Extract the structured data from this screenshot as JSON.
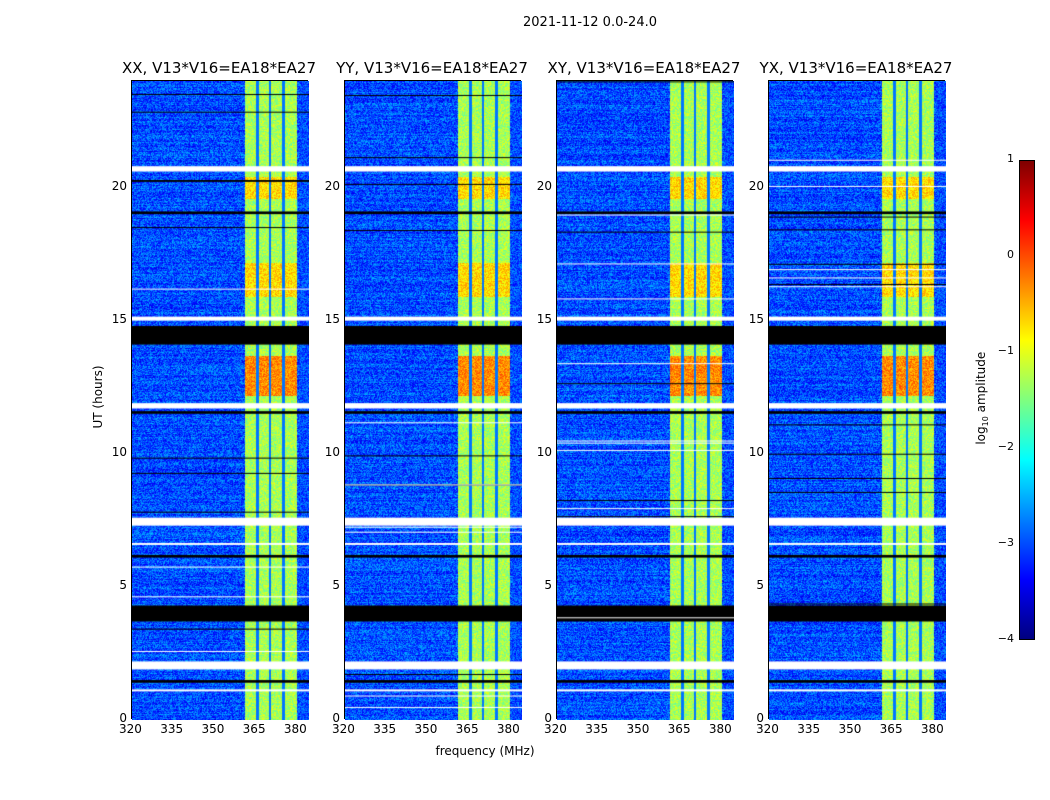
{
  "chart_data": {
    "type": "heatmap",
    "title": "2021-11-12 0.0-24.0",
    "panels": [
      {
        "title": "XX, V13*V16=EA18*EA27"
      },
      {
        "title": "YY, V13*V16=EA18*EA27"
      },
      {
        "title": "XY, V13*V16=EA18*EA27"
      },
      {
        "title": "YX, V13*V16=EA18*EA27"
      }
    ],
    "xlabel": "frequency (MHz)",
    "ylabel": "UT (hours)",
    "xlim": [
      320,
      384.4
    ],
    "ylim": [
      0,
      24
    ],
    "xticks": [
      "320",
      "335",
      "350",
      "365",
      "380"
    ],
    "xtick_values": [
      320,
      335,
      350,
      365,
      380
    ],
    "yticks": [
      "0",
      "5",
      "10",
      "15",
      "20"
    ],
    "ytick_values": [
      0,
      5,
      10,
      15,
      20
    ],
    "colorbar": {
      "label": "log10 amplitude",
      "label_main": "log",
      "label_sub": "10",
      "label_rest": " amplitude",
      "clim": [
        -4,
        1
      ],
      "ticks": [
        "1",
        "0",
        "−1",
        "−2",
        "−3",
        "−4"
      ],
      "tick_values": [
        1,
        0,
        -1,
        -2,
        -3,
        -4
      ],
      "colormap": "jet"
    },
    "background_level": -3.0,
    "rfi_band_mhz": [
      361,
      380
    ],
    "rfi_band_level": -1.3,
    "rfi_gaps_mhz": [
      365.5,
      370,
      375
    ],
    "bright_periods_hours": [
      [
        12.2,
        13.7
      ],
      [
        19.6,
        20.4
      ],
      [
        15.9,
        17.2
      ]
    ],
    "flagged_white_hours": [
      [
        1.9,
        2.2
      ],
      [
        7.3,
        7.6
      ],
      [
        11.7,
        11.9
      ],
      [
        15.0,
        15.15
      ],
      [
        20.6,
        20.8
      ],
      [
        1.1,
        1.15
      ],
      [
        6.6,
        6.65
      ]
    ],
    "flagged_black_hours": [
      [
        3.7,
        4.3
      ],
      [
        14.1,
        14.8
      ],
      [
        1.4,
        1.5
      ],
      [
        11.5,
        11.6
      ],
      [
        19.0,
        19.1
      ],
      [
        6.1,
        6.2
      ]
    ]
  }
}
